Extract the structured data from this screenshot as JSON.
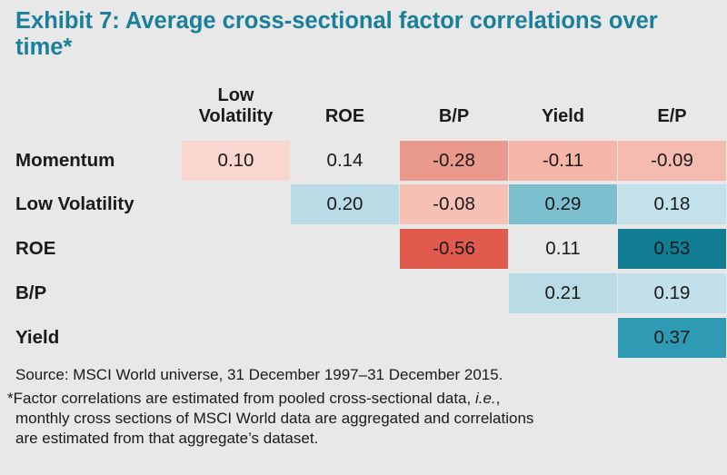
{
  "title": "Exhibit 7: Average cross-sectional factor correlations over time*",
  "chart_data": {
    "type": "table",
    "title": "Exhibit 7: Average cross-sectional factor correlations over time*",
    "columns": [
      "Low Volatility",
      "ROE",
      "B/P",
      "Yield",
      "E/P"
    ],
    "rows": [
      {
        "label": "Momentum",
        "values": [
          0.1,
          0.14,
          -0.28,
          -0.11,
          -0.09
        ],
        "display": [
          "0.10",
          "0.14",
          "-0.28",
          "-0.11",
          "-0.09"
        ],
        "colors": [
          "#f9d6cf",
          "",
          "#ea9a8c",
          "#f5b5a8",
          "#f6bbb0"
        ]
      },
      {
        "label": "Low Volatility",
        "values": [
          null,
          0.2,
          -0.08,
          0.29,
          0.18
        ],
        "display": [
          "",
          "0.20",
          "-0.08",
          "0.29",
          "0.18"
        ],
        "colors": [
          "",
          "#b8dbe5",
          "#f6c0b4",
          "#7ebfcf",
          "#c3e1ea"
        ]
      },
      {
        "label": "ROE",
        "values": [
          null,
          null,
          -0.56,
          0.11,
          0.53
        ],
        "display": [
          "",
          "",
          "-0.56",
          "0.11",
          "0.53"
        ],
        "colors": [
          "",
          "",
          "#e05a4d",
          "",
          "#107d93"
        ]
      },
      {
        "label": "B/P",
        "values": [
          null,
          null,
          null,
          0.21,
          0.19
        ],
        "display": [
          "",
          "",
          "",
          "0.21",
          "0.19"
        ],
        "colors": [
          "",
          "",
          "",
          "#b8dbe5",
          "#c1e0e9"
        ]
      },
      {
        "label": "Yield",
        "values": [
          null,
          null,
          null,
          null,
          0.37
        ],
        "display": [
          "",
          "",
          "",
          "",
          "0.37"
        ],
        "colors": [
          "",
          "",
          "",
          "",
          "#2e9ab3"
        ]
      }
    ]
  },
  "source": "Source: MSCI World universe, 31 December 1997–31 December 2015.",
  "note": {
    "line1_pre": "*Factor correlations are estimated from pooled cross-sectional data, ",
    "line1_em": "i.e.",
    "line1_post": ",",
    "line2": "monthly cross sections of MSCI World data are aggregated and correlations",
    "line3": "are estimated from that aggregate’s dataset."
  }
}
